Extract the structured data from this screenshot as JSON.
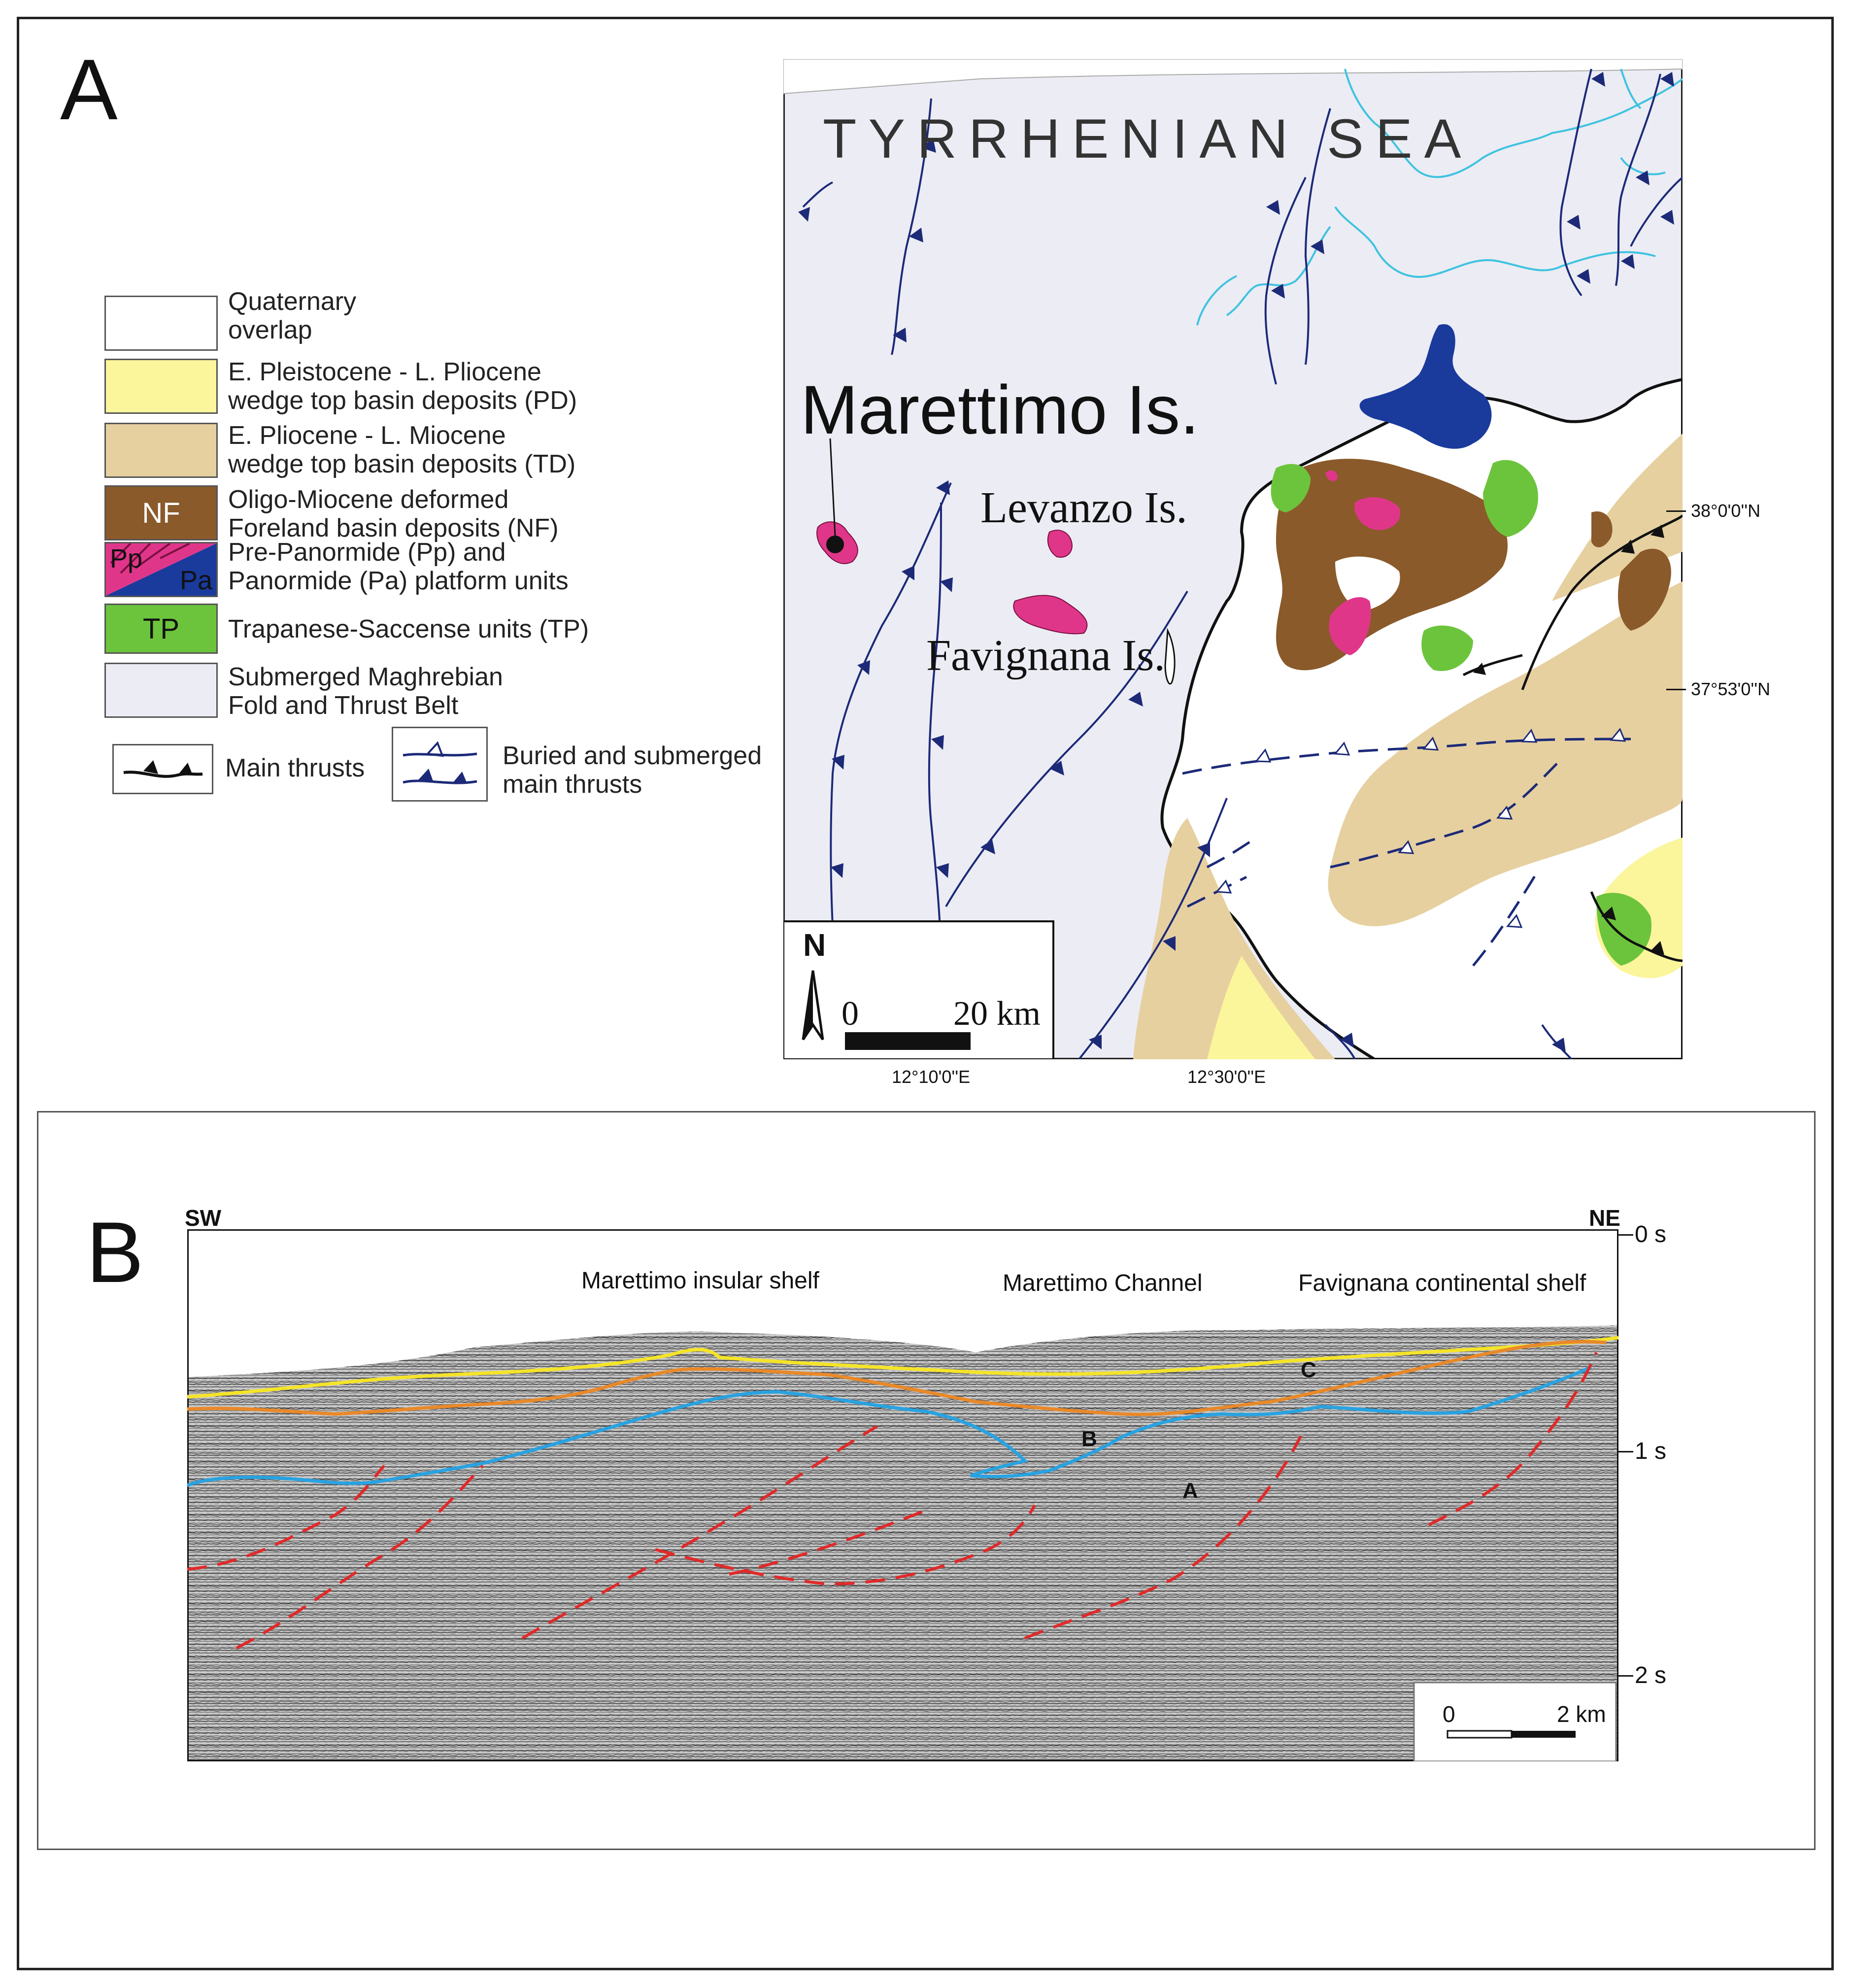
{
  "panel_a": {
    "letter": "A",
    "legend": [
      {
        "swatch_text": "",
        "text": "Quaternary\noverlap",
        "color": "#ffffff"
      },
      {
        "swatch_text": "",
        "text": "E. Pleistocene - L. Pliocene\nwedge top basin deposits (PD)",
        "color": "#fbf59c"
      },
      {
        "swatch_text": "",
        "text": "E. Pliocene - L. Miocene\nwedge top basin deposits (TD)",
        "color": "#e6d0a0"
      },
      {
        "swatch_text": "NF",
        "text": "Oligo-Miocene deformed\nForeland basin deposits (NF)",
        "color": "#8b5a2b"
      },
      {
        "swatch_text": "",
        "swatch_text_pp": "Pp",
        "swatch_text_pa": "Pa",
        "text": "Pre-Panormide (Pp) and\nPanormide (Pa) platform units",
        "color_pp": "#e0368a",
        "color_pa": "#1a3a9c"
      },
      {
        "swatch_text": "TP",
        "text": "Trapanese-Saccense units (TP)",
        "color": "#6cc43c"
      },
      {
        "swatch_text": "",
        "text": "Submerged Maghrebian\nFold and Thrust Belt",
        "color": "#ececf4"
      }
    ],
    "thrust_legend": {
      "main_thrusts": "Main thrusts",
      "buried": "Buried and submerged\nmain thrusts"
    },
    "map": {
      "sea_label": "TYRRHENIAN SEA",
      "islands": {
        "marettimo": "Marettimo Is.",
        "levanzo": "Levanzo Is.",
        "favignana": "Favignana Is."
      },
      "north_label": "N",
      "scale_start": "0",
      "scale_end": "20 km",
      "lat_labels": [
        "38°0'0''N",
        "37°53'0''N"
      ],
      "lon_labels": [
        "12°10'0''E",
        "12°30'0''E"
      ],
      "colors": {
        "sea": "#ececf4",
        "land": "#ffffff",
        "thrust": "#1c2a78",
        "river": "#3ec3e0",
        "platform_pa": "#1a3a9c",
        "platform_pp": "#e0368a",
        "nf": "#8b5a2b",
        "tp": "#6cc43c",
        "td": "#e6d0a0",
        "pd": "#fbf59c"
      }
    }
  },
  "panel_b": {
    "letter": "B",
    "profile": {
      "left_end": "SW",
      "right_end": "NE",
      "time_labels": [
        "0 s",
        "1 s",
        "2 s"
      ],
      "features": [
        "Marettimo insular shelf",
        "Marettimo Channel",
        "Favignana continental shelf"
      ],
      "horizons": [
        "C",
        "B",
        "A"
      ],
      "scale_start": "0",
      "scale_end": "2 km",
      "colors": {
        "yellow": "#f5e428",
        "orange": "#e8892a",
        "blue": "#2aa2e0",
        "faults": "#e02a2a"
      }
    }
  }
}
